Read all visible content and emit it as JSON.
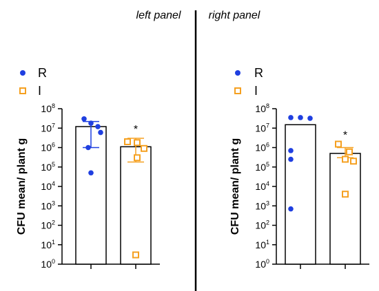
{
  "chart_data": [
    {
      "type": "bar",
      "title": "left panel",
      "ylabel": "CFU mean/ plant g",
      "yscale": "log",
      "ylim": [
        1,
        100000000
      ],
      "yticks": [
        {
          "base": "10",
          "exp": "0",
          "value": 1
        },
        {
          "base": "10",
          "exp": "1",
          "value": 10
        },
        {
          "base": "10",
          "exp": "2",
          "value": 100
        },
        {
          "base": "10",
          "exp": "3",
          "value": 1000
        },
        {
          "base": "10",
          "exp": "4",
          "value": 10000
        },
        {
          "base": "10",
          "exp": "5",
          "value": 100000
        },
        {
          "base": "10",
          "exp": "6",
          "value": 1000000
        },
        {
          "base": "10",
          "exp": "7",
          "value": 10000000
        },
        {
          "base": "10",
          "exp": "8",
          "value": 100000000
        }
      ],
      "legend": {
        "placement": "top-left"
      },
      "series": [
        {
          "name": "R",
          "marker": "circle",
          "color": "#1f3fe0",
          "bar_mean": 12000000,
          "error": [
            1000000,
            22000000
          ],
          "points": [
            30000000,
            18000000,
            12000000,
            6000000,
            1000000,
            50000
          ]
        },
        {
          "name": "I",
          "marker": "square-open",
          "color": "#f5a020",
          "bar_mean": 1100000,
          "error": [
            180000,
            3000000
          ],
          "points": [
            2000000,
            1800000,
            900000,
            300000,
            3
          ]
        }
      ],
      "annotations": [
        {
          "series": "I",
          "text": "*"
        }
      ]
    },
    {
      "type": "bar",
      "title": "right panel",
      "ylabel": "CFU mean/ plant g",
      "yscale": "log",
      "ylim": [
        1,
        100000000
      ],
      "yticks": [
        {
          "base": "10",
          "exp": "0",
          "value": 1
        },
        {
          "base": "10",
          "exp": "1",
          "value": 10
        },
        {
          "base": "10",
          "exp": "2",
          "value": 100
        },
        {
          "base": "10",
          "exp": "3",
          "value": 1000
        },
        {
          "base": "10",
          "exp": "4",
          "value": 10000
        },
        {
          "base": "10",
          "exp": "5",
          "value": 100000
        },
        {
          "base": "10",
          "exp": "6",
          "value": 1000000
        },
        {
          "base": "10",
          "exp": "7",
          "value": 10000000
        },
        {
          "base": "10",
          "exp": "8",
          "value": 100000000
        }
      ],
      "legend": {
        "placement": "top-left"
      },
      "series": [
        {
          "name": "R",
          "marker": "circle",
          "color": "#1f3fe0",
          "bar_mean": 15000000,
          "error": null,
          "points": [
            35000000,
            35000000,
            32000000,
            700000,
            250000,
            700
          ]
        },
        {
          "name": "I",
          "marker": "square-open",
          "color": "#f5a020",
          "bar_mean": 500000,
          "error": [
            300000,
            1000000
          ],
          "points": [
            1500000,
            600000,
            250000,
            200000,
            4000
          ]
        }
      ],
      "annotations": [
        {
          "series": "I",
          "text": "*"
        }
      ]
    }
  ]
}
